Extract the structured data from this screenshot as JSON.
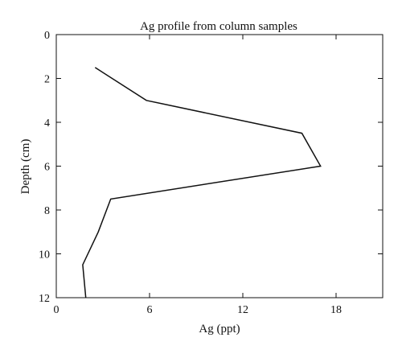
{
  "chart_data": {
    "type": "line",
    "title": "Ag profile from column samples",
    "xlabel": "Ag (ppt)",
    "ylabel": "Depth (cm)",
    "xlim": [
      0,
      21
    ],
    "ylim": [
      0,
      12
    ],
    "y_inverted": true,
    "x_ticks": [
      0,
      6,
      12,
      18
    ],
    "y_ticks": [
      0,
      2,
      4,
      6,
      8,
      10,
      12
    ],
    "grid": false,
    "line_color": "#111111",
    "series": [
      {
        "points": [
          {
            "x": 2.5,
            "y": 1.5
          },
          {
            "x": 5.8,
            "y": 3.0
          },
          {
            "x": 15.8,
            "y": 4.5
          },
          {
            "x": 17.0,
            "y": 6.0
          },
          {
            "x": 3.5,
            "y": 7.5
          },
          {
            "x": 2.7,
            "y": 9.0
          },
          {
            "x": 1.7,
            "y": 10.5
          },
          {
            "x": 1.9,
            "y": 12.0
          }
        ]
      }
    ]
  }
}
